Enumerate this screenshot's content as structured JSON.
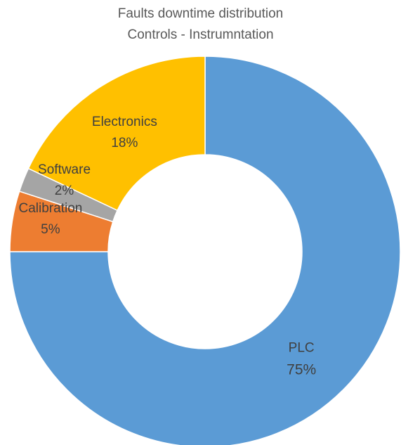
{
  "chart_data": {
    "type": "pie",
    "subtype": "donut",
    "title": "Faults downtime distribution",
    "subtitle": "Controls - Instrumntation",
    "slices": [
      {
        "label": "PLC",
        "value": 75,
        "value_label": "75%",
        "color": "#5B9BD5"
      },
      {
        "label": "Calibration",
        "value": 5,
        "value_label": "5%",
        "color": "#ED7D31"
      },
      {
        "label": "Software",
        "value": 2,
        "value_label": "2%",
        "color": "#A5A5A5"
      },
      {
        "label": "Electronics",
        "value": 18,
        "value_label": "18%",
        "color": "#FFC000"
      }
    ],
    "legend": "none"
  }
}
